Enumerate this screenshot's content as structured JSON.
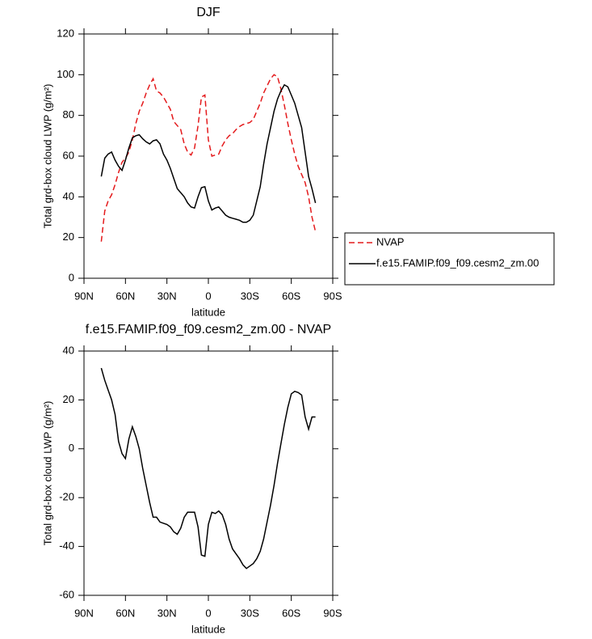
{
  "chart_data": [
    {
      "type": "line",
      "title": "DJF",
      "xlabel": "latitude",
      "ylabel": "Total grd-box cloud LWP (g/m²)",
      "x": [
        77.5,
        75,
        72.5,
        70,
        67.5,
        65,
        62.5,
        60,
        57.5,
        55,
        52.5,
        50,
        47.5,
        45,
        42.5,
        40,
        37.5,
        35,
        32.5,
        30,
        27.5,
        25,
        22.5,
        20,
        17.5,
        15,
        12.5,
        10,
        7.5,
        5,
        2.5,
        0,
        -2.5,
        -5,
        -7.5,
        -10,
        -12.5,
        -15,
        -17.5,
        -20,
        -22.5,
        -25,
        -27.5,
        -30,
        -32.5,
        -35,
        -37.5,
        -40,
        -42.5,
        -45,
        -47.5,
        -50,
        -52.5,
        -55,
        -57.5,
        -60,
        -62.5,
        -65,
        -67.5,
        -70,
        -72.5,
        -75,
        -77.5
      ],
      "series": [
        {
          "name": "NVAP",
          "color": "#e41a1c",
          "dashed": true,
          "values": [
            18,
            33,
            38,
            41,
            46,
            52,
            57,
            59,
            62,
            68,
            76,
            82,
            86,
            91,
            95,
            98,
            92,
            91,
            89,
            86,
            83,
            77,
            75,
            73,
            66,
            62,
            60.5,
            64,
            75,
            89,
            90,
            68,
            60,
            60.5,
            61,
            65,
            68,
            70,
            71,
            73,
            74.5,
            75.5,
            76,
            76.5,
            78,
            82,
            86,
            91,
            94.5,
            98,
            100,
            99,
            93,
            85,
            76,
            68,
            61,
            55,
            51,
            47,
            40,
            30,
            23
          ]
        },
        {
          "name": "f.e15.FAMIP.f09_f09.cesm2_zm.00",
          "color": "#000000",
          "dashed": false,
          "values": [
            50,
            59,
            61,
            62,
            58,
            55,
            53,
            58,
            64,
            69,
            70,
            70.5,
            68.5,
            67,
            66,
            67.5,
            68,
            66,
            61,
            58,
            54,
            49,
            44,
            42,
            40,
            37,
            35,
            34.5,
            40,
            44.5,
            45,
            38,
            33.5,
            34.5,
            35,
            33,
            31,
            30,
            29.5,
            29,
            28.5,
            27.5,
            27.5,
            28.5,
            31,
            38,
            45,
            56,
            66,
            74,
            82,
            88,
            92,
            95,
            94,
            90,
            86,
            80,
            74,
            62,
            50,
            44,
            37
          ]
        }
      ],
      "xlim": [
        90,
        -90
      ],
      "xticks": [
        {
          "value": 90,
          "label": "90N"
        },
        {
          "value": 60,
          "label": "60N"
        },
        {
          "value": 30,
          "label": "30N"
        },
        0,
        {
          "value": -30,
          "label": "30S"
        },
        {
          "value": -60,
          "label": "60S"
        },
        {
          "value": -90,
          "label": "90S"
        }
      ],
      "ylim": [
        0,
        120
      ],
      "yticks": [
        0,
        20,
        40,
        60,
        80,
        100,
        120
      ],
      "legend": "outside right"
    },
    {
      "type": "line",
      "title": "f.e15.FAMIP.f09_f09.cesm2_zm.00 - NVAP",
      "xlabel": "latitude",
      "ylabel": "Total grd-box cloud LWP (g/m²)",
      "x": [
        77.5,
        75,
        72.5,
        70,
        67.5,
        65,
        62.5,
        60,
        57.5,
        55,
        52.5,
        50,
        47.5,
        45,
        42.5,
        40,
        37.5,
        35,
        32.5,
        30,
        27.5,
        25,
        22.5,
        20,
        17.5,
        15,
        12.5,
        10,
        7.5,
        5,
        2.5,
        0,
        -2.5,
        -5,
        -7.5,
        -10,
        -12.5,
        -15,
        -17.5,
        -20,
        -22.5,
        -25,
        -27.5,
        -30,
        -32.5,
        -35,
        -37.5,
        -40,
        -42.5,
        -45,
        -47.5,
        -50,
        -52.5,
        -55,
        -57.5,
        -60,
        -62.5,
        -65,
        -67.5,
        -70,
        -72.5,
        -75,
        -77.5
      ],
      "color": "#000000",
      "values": [
        33,
        28,
        24,
        20,
        14,
        3,
        -2,
        -4,
        4,
        9,
        5,
        0,
        -8,
        -15,
        -22,
        -28,
        -28,
        -30,
        -30.5,
        -31,
        -32,
        -34,
        -35,
        -32.5,
        -28,
        -26,
        -26,
        -26,
        -32,
        -43.5,
        -44,
        -31,
        -26,
        -26.5,
        -25.5,
        -27,
        -31,
        -37,
        -41,
        -43,
        -45,
        -47.5,
        -49,
        -48,
        -47,
        -45,
        -42,
        -37,
        -30,
        -23,
        -15,
        -6,
        2,
        10,
        17,
        22.5,
        23.5,
        23,
        22,
        13,
        8,
        13,
        13
      ],
      "xlim": [
        90,
        -90
      ],
      "xticks": [
        {
          "value": 90,
          "label": "90N"
        },
        {
          "value": 60,
          "label": "60N"
        },
        {
          "value": 30,
          "label": "30N"
        },
        0,
        {
          "value": -30,
          "label": "30S"
        },
        {
          "value": -60,
          "label": "60S"
        },
        {
          "value": -90,
          "label": "90S"
        }
      ],
      "ylim": [
        -60,
        40
      ],
      "yticks": [
        -60,
        -40,
        -20,
        0,
        20,
        40
      ]
    }
  ]
}
